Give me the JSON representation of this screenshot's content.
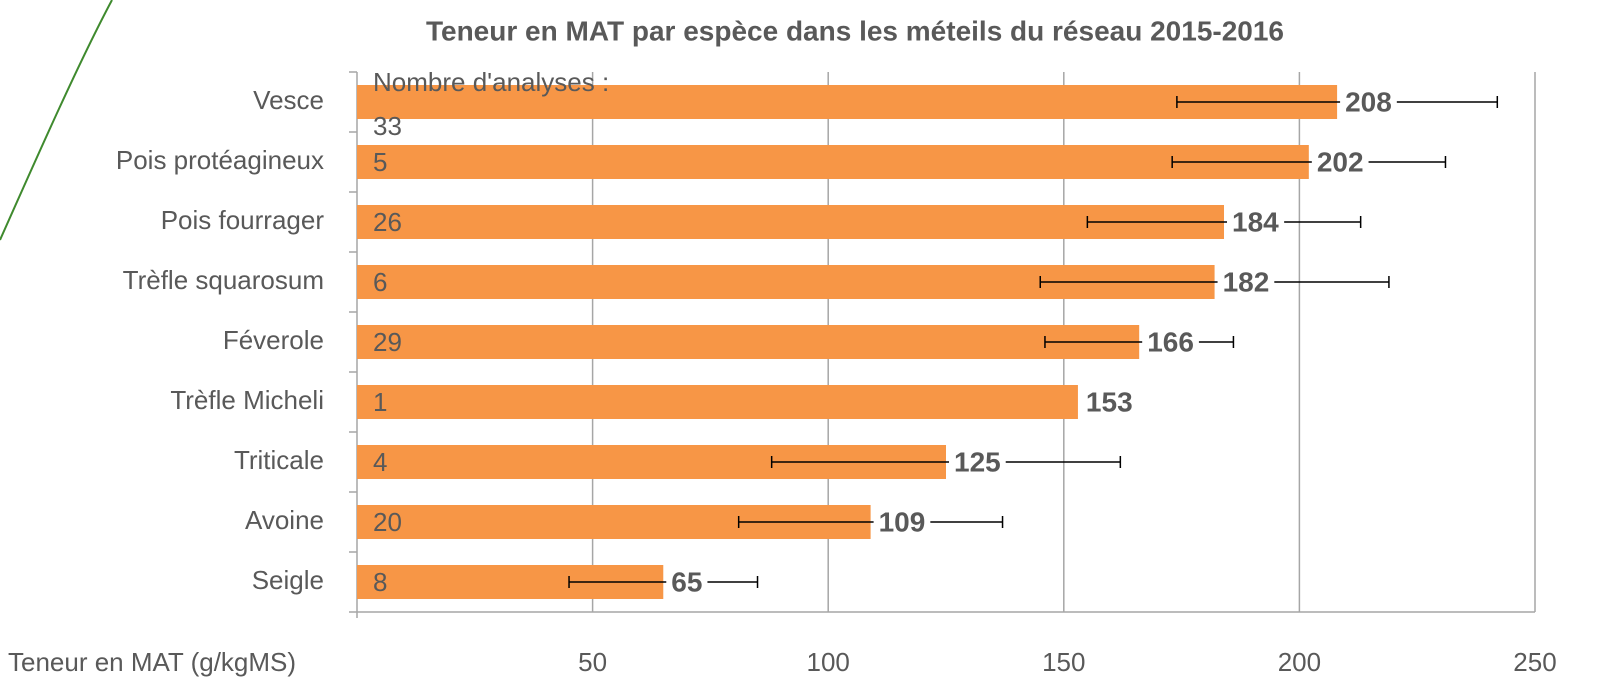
{
  "chart_data": {
    "type": "bar",
    "orientation": "horizontal",
    "title": "Teneur en MAT par espèce dans les méteils du réseau 2015-2016",
    "x_label": "Teneur en MAT (g/kgMS)",
    "categories": [
      "Vesce",
      "Pois protéagineux",
      "Pois fourrager",
      "Trèfle squarosum",
      "Féverole",
      "Trèfle Micheli",
      "Triticale",
      "Avoine",
      "Seigle"
    ],
    "values": [
      208,
      202,
      184,
      182,
      166,
      153,
      125,
      109,
      65
    ],
    "errors": [
      34,
      29,
      29,
      37,
      20,
      null,
      37,
      28,
      20
    ],
    "count_label": "Nombre d'analyses :",
    "counts": [
      33,
      5,
      26,
      6,
      29,
      1,
      4,
      20,
      8
    ],
    "color": "#f79646",
    "error_color": "#000000",
    "xlim": [
      0,
      250
    ],
    "xticks": [
      50,
      100,
      150,
      200,
      250
    ],
    "grid": true
  }
}
